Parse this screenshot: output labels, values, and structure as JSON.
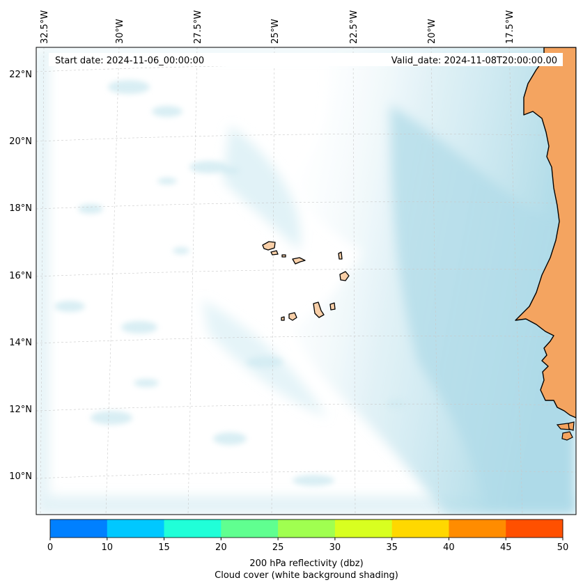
{
  "header": {
    "start_date": "Start date: 2024-11-06_00:00:00",
    "valid_date": "Valid_date: 2024-11-08T20:00:00.00"
  },
  "map": {
    "longitude_labels": [
      "32.5°W",
      "30°W",
      "27.5°W",
      "25°W",
      "22.5°W",
      "20°W",
      "17.5°W"
    ],
    "latitude_labels": [
      "22°N",
      "20°N",
      "18°N",
      "16°N",
      "14°N",
      "12°N",
      "10°N"
    ],
    "land_color": "#f4a460",
    "island_color": "#f8cfa8",
    "cloud_color": "#add8e6",
    "gridlines": true
  },
  "colorbar": {
    "ticks": [
      "0",
      "10",
      "15",
      "20",
      "25",
      "30",
      "35",
      "40",
      "45",
      "50"
    ],
    "colors": [
      "#0080ff",
      "#00c8ff",
      "#20ffd8",
      "#60ff90",
      "#a0ff50",
      "#d8ff20",
      "#ffd800",
      "#ff8c00",
      "#ff5000"
    ],
    "label_line1": "200 hPa reflectivity (dbz)",
    "label_line2": "Cloud cover (white background shading)"
  }
}
